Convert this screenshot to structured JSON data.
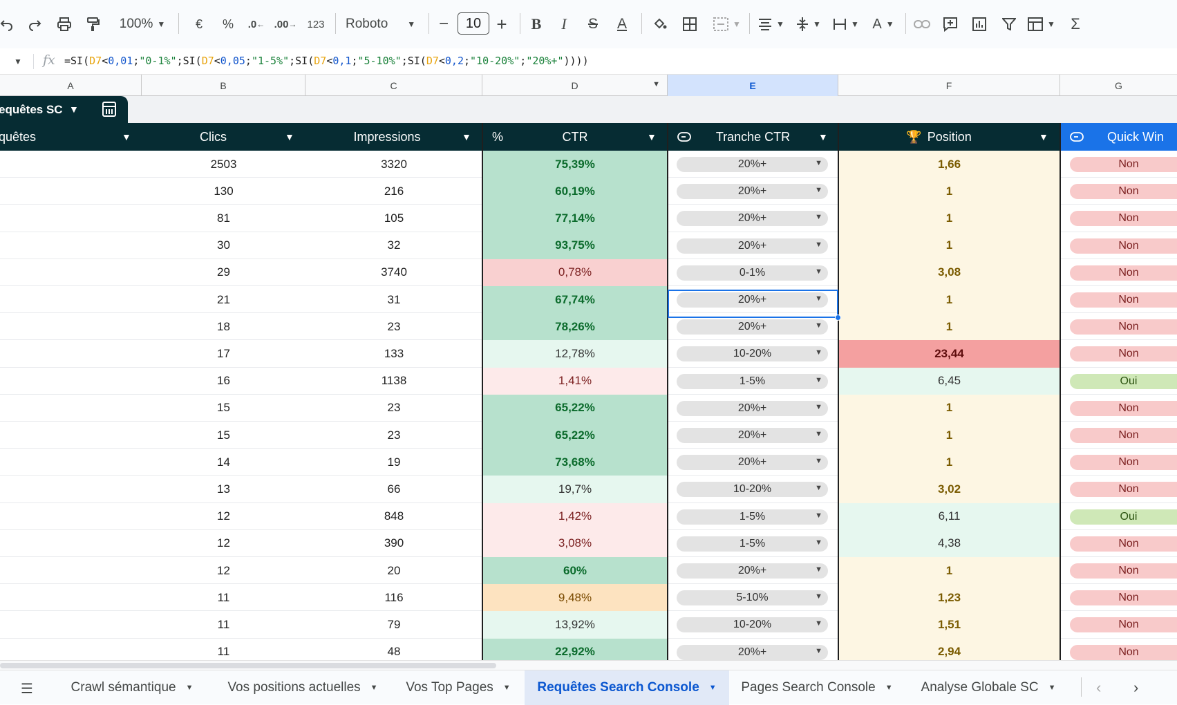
{
  "toolbar": {
    "undo_icon": "undo-icon",
    "redo_icon": "redo-icon",
    "print_icon": "print-icon",
    "paint_format_icon": "paint-format-icon",
    "zoom": "100%",
    "currency": "€",
    "percent": "%",
    "decrease_decimals": ".0",
    "increase_decimals": ".00",
    "number_format": "123",
    "font": "Roboto",
    "font_size": "10",
    "minus": "−",
    "plus": "+"
  },
  "formula_bar": {
    "parts": [
      {
        "t": "=SI(",
        "c": ""
      },
      {
        "t": "D7",
        "c": "ref"
      },
      {
        "t": "<",
        "c": ""
      },
      {
        "t": "0,01",
        "c": "num"
      },
      {
        "t": ";",
        "c": ""
      },
      {
        "t": "\"0-1%\"",
        "c": "str"
      },
      {
        "t": ";SI(",
        "c": ""
      },
      {
        "t": "D7",
        "c": "ref"
      },
      {
        "t": "<",
        "c": ""
      },
      {
        "t": "0,05",
        "c": "num"
      },
      {
        "t": ";",
        "c": ""
      },
      {
        "t": "\"1-5%\"",
        "c": "str"
      },
      {
        "t": ";SI(",
        "c": ""
      },
      {
        "t": "D7",
        "c": "ref"
      },
      {
        "t": "<",
        "c": ""
      },
      {
        "t": "0,1",
        "c": "num"
      },
      {
        "t": ";",
        "c": ""
      },
      {
        "t": "\"5-10%\"",
        "c": "str"
      },
      {
        "t": ";SI(",
        "c": ""
      },
      {
        "t": "D7",
        "c": "ref"
      },
      {
        "t": "<",
        "c": ""
      },
      {
        "t": "0,2",
        "c": "num"
      },
      {
        "t": ";",
        "c": ""
      },
      {
        "t": "\"10-20%\"",
        "c": "str"
      },
      {
        "t": ";",
        "c": ""
      },
      {
        "t": "\"20%+\"",
        "c": "str"
      },
      {
        "t": "))))",
        "c": ""
      }
    ]
  },
  "columns": [
    "A",
    "B",
    "C",
    "D",
    "E",
    "F",
    "G"
  ],
  "table": {
    "name": "equêtes SC",
    "headers": {
      "requetes": "quêtes",
      "clics": "Clics",
      "impressions": "Impressions",
      "pct": "%",
      "ctr": "CTR",
      "tranche": "Tranche CTR",
      "position": "Position",
      "quick_win": "Quick Win"
    },
    "rows": [
      {
        "clics": "2503",
        "impressions": "3320",
        "ctr": "75,39%",
        "ctr_style": "green-strong",
        "tranche": "20%+",
        "position": "1,66",
        "pos_style": "yellow",
        "quick_win": "Non"
      },
      {
        "clics": "130",
        "impressions": "216",
        "ctr": "60,19%",
        "ctr_style": "green-strong",
        "tranche": "20%+",
        "position": "1",
        "pos_style": "yellow",
        "quick_win": "Non"
      },
      {
        "clics": "81",
        "impressions": "105",
        "ctr": "77,14%",
        "ctr_style": "green-strong",
        "tranche": "20%+",
        "position": "1",
        "pos_style": "yellow",
        "quick_win": "Non"
      },
      {
        "clics": "30",
        "impressions": "32",
        "ctr": "93,75%",
        "ctr_style": "green-strong",
        "tranche": "20%+",
        "position": "1",
        "pos_style": "yellow",
        "quick_win": "Non"
      },
      {
        "clics": "29",
        "impressions": "3740",
        "ctr": "0,78%",
        "ctr_style": "red-strong",
        "tranche": "0-1%",
        "position": "3,08",
        "pos_style": "yellow",
        "quick_win": "Non"
      },
      {
        "clics": "21",
        "impressions": "31",
        "ctr": "67,74%",
        "ctr_style": "green-strong",
        "tranche": "20%+",
        "position": "1",
        "pos_style": "yellow",
        "quick_win": "Non"
      },
      {
        "clics": "18",
        "impressions": "23",
        "ctr": "78,26%",
        "ctr_style": "green-strong",
        "tranche": "20%+",
        "position": "1",
        "pos_style": "yellow",
        "quick_win": "Non"
      },
      {
        "clics": "17",
        "impressions": "133",
        "ctr": "12,78%",
        "ctr_style": "green-light",
        "tranche": "10-20%",
        "position": "23,44",
        "pos_style": "red",
        "quick_win": "Non"
      },
      {
        "clics": "16",
        "impressions": "1138",
        "ctr": "1,41%",
        "ctr_style": "red-light",
        "tranche": "1-5%",
        "position": "6,45",
        "pos_style": "green",
        "quick_win": "Oui"
      },
      {
        "clics": "15",
        "impressions": "23",
        "ctr": "65,22%",
        "ctr_style": "green-strong",
        "tranche": "20%+",
        "position": "1",
        "pos_style": "yellow",
        "quick_win": "Non"
      },
      {
        "clics": "15",
        "impressions": "23",
        "ctr": "65,22%",
        "ctr_style": "green-strong",
        "tranche": "20%+",
        "position": "1",
        "pos_style": "yellow",
        "quick_win": "Non"
      },
      {
        "clics": "14",
        "impressions": "19",
        "ctr": "73,68%",
        "ctr_style": "green-strong",
        "tranche": "20%+",
        "position": "1",
        "pos_style": "yellow",
        "quick_win": "Non"
      },
      {
        "clics": "13",
        "impressions": "66",
        "ctr": "19,7%",
        "ctr_style": "green-light",
        "tranche": "10-20%",
        "position": "3,02",
        "pos_style": "yellow",
        "quick_win": "Non"
      },
      {
        "clics": "12",
        "impressions": "848",
        "ctr": "1,42%",
        "ctr_style": "red-light",
        "tranche": "1-5%",
        "position": "6,11",
        "pos_style": "green",
        "quick_win": "Oui"
      },
      {
        "clics": "12",
        "impressions": "390",
        "ctr": "3,08%",
        "ctr_style": "red-light",
        "tranche": "1-5%",
        "position": "4,38",
        "pos_style": "green",
        "quick_win": "Non"
      },
      {
        "clics": "12",
        "impressions": "20",
        "ctr": "60%",
        "ctr_style": "green-strong",
        "tranche": "20%+",
        "position": "1",
        "pos_style": "yellow",
        "quick_win": "Non"
      },
      {
        "clics": "11",
        "impressions": "116",
        "ctr": "9,48%",
        "ctr_style": "orange",
        "tranche": "5-10%",
        "position": "1,23",
        "pos_style": "yellow",
        "quick_win": "Non"
      },
      {
        "clics": "11",
        "impressions": "79",
        "ctr": "13,92%",
        "ctr_style": "green-light",
        "tranche": "10-20%",
        "position": "1,51",
        "pos_style": "yellow",
        "quick_win": "Non"
      },
      {
        "clics": "11",
        "impressions": "48",
        "ctr": "22,92%",
        "ctr_style": "green-strong",
        "tranche": "20%+",
        "position": "2,94",
        "pos_style": "yellow",
        "quick_win": "Non"
      }
    ]
  },
  "sheet_tabs": [
    {
      "label": "Crawl sémantique",
      "active": false
    },
    {
      "label": "Vos positions actuelles",
      "active": false
    },
    {
      "label": "Vos Top Pages",
      "active": false
    },
    {
      "label": "Requêtes Search Console",
      "active": true
    },
    {
      "label": "Pages Search Console",
      "active": false
    },
    {
      "label": "Analyse Globale SC",
      "active": false
    }
  ],
  "colors": {
    "header_bg": "#062c33",
    "quick_win_header": "#1a73e8",
    "selection": "#1a73e8",
    "active_tab": "#0b57d0"
  }
}
